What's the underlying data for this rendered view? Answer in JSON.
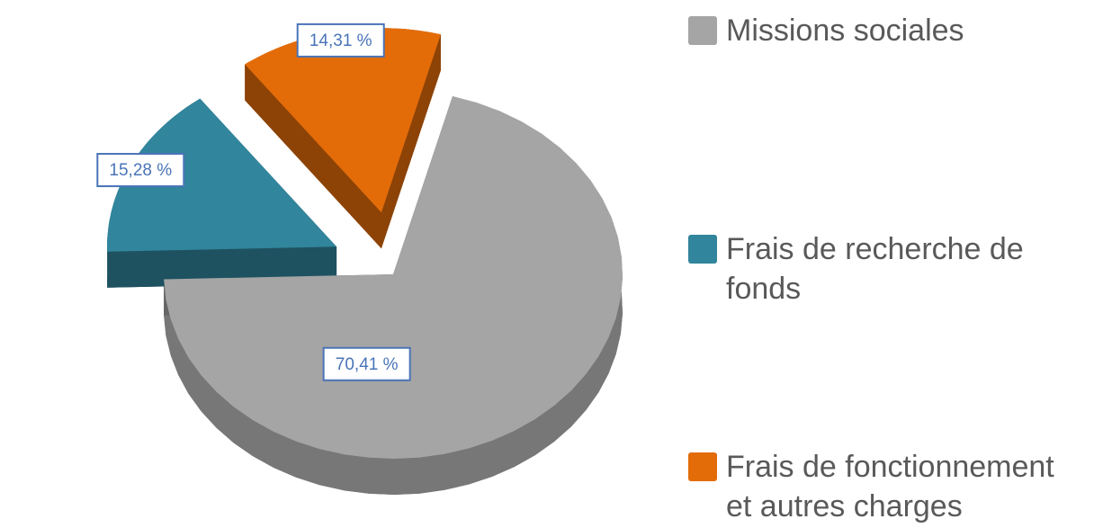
{
  "chart_data": {
    "type": "pie",
    "categories": [
      "Missions sociales",
      "Frais de recherche de fonds",
      "Frais de fonctionnement et autres charges"
    ],
    "values": [
      70.41,
      15.28,
      14.31
    ],
    "value_labels": [
      "70,41 %",
      "15,28 %",
      "14,31 %"
    ],
    "colors": [
      "#a5a5a5",
      "#31859c",
      "#e36c09"
    ],
    "legend": "right"
  }
}
